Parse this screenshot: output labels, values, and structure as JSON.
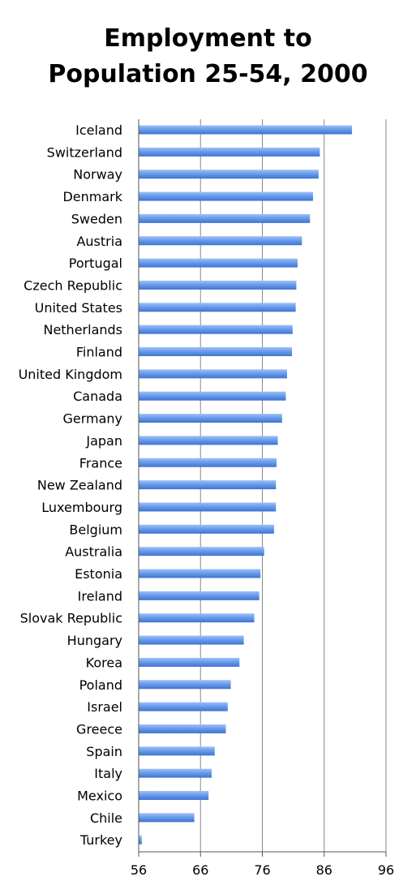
{
  "chart_data": {
    "type": "bar",
    "orientation": "horizontal",
    "title_lines": [
      "Employment to",
      "Population 25-54, 2000"
    ],
    "categories": [
      "Iceland",
      "Switzerland",
      "Norway",
      "Denmark",
      "Sweden",
      "Austria",
      "Portugal",
      "Czech Republic",
      "United States",
      "Netherlands",
      "Finland",
      "United Kingdom",
      "Canada",
      "Germany",
      "Japan",
      "France",
      "New Zealand",
      "Luxembourg",
      "Belgium",
      "Australia",
      "Estonia",
      "Ireland",
      "Slovak Republic",
      "Hungary",
      "Korea",
      "Poland",
      "Israel",
      "Greece",
      "Spain",
      "Italy",
      "Mexico",
      "Chile",
      "Turkey"
    ],
    "values": [
      90.5,
      85.3,
      85.1,
      84.2,
      83.7,
      82.4,
      81.7,
      81.5,
      81.4,
      80.9,
      80.8,
      80.0,
      79.8,
      79.2,
      78.5,
      78.3,
      78.2,
      78.2,
      77.9,
      76.3,
      75.7,
      75.5,
      74.7,
      73.0,
      72.3,
      70.9,
      70.4,
      70.1,
      68.3,
      67.8,
      67.3,
      65.0,
      56.5
    ],
    "xlim": [
      56,
      96
    ],
    "xticks": [
      56,
      66,
      76,
      86,
      96
    ],
    "grid": "vertical",
    "bar_color": "#5b8fe8",
    "grid_color": "#888888"
  }
}
